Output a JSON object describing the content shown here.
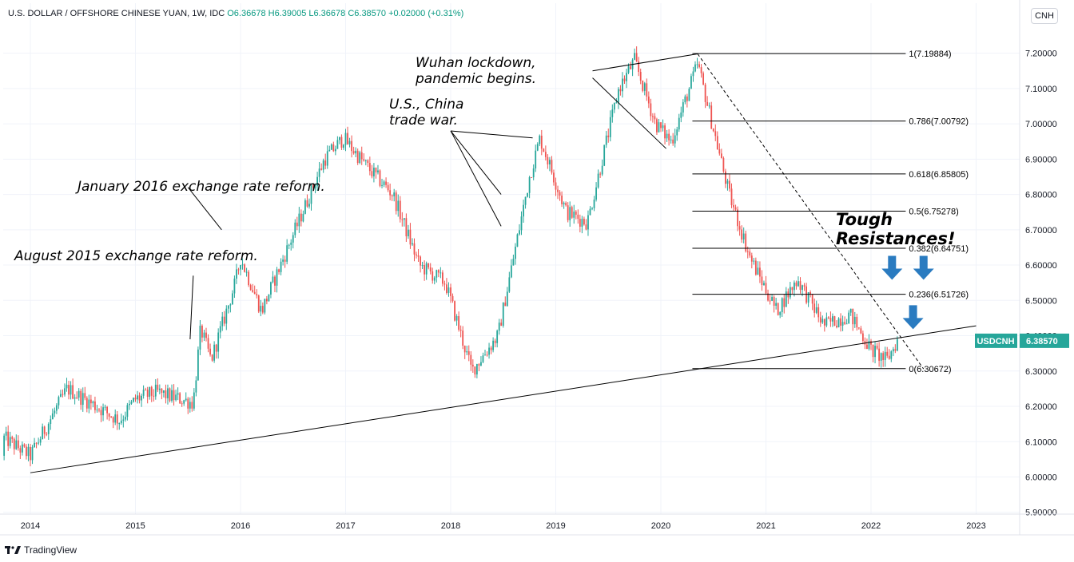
{
  "header": {
    "symbol": "U.S. DOLLAR / OFFSHORE CHINESE YUAN, 1W, IDC",
    "ohlc": "O6.36678  H6.39005  L6.36678  C6.38570  +0.02000 (+0.31%)"
  },
  "currency_button": "CNH",
  "brand": "TradingView",
  "annotations": {
    "aug2015": "August 2015 exchange rate reform.",
    "jan2016": "January 2016 exchange rate reform.",
    "tradewar_1": "U.S., China",
    "tradewar_2": "trade war.",
    "wuhan_1": "Wuhan lockdown,",
    "wuhan_2": "pandemic begins.",
    "tough_1": "Tough",
    "tough_2": "Resistances!"
  },
  "colors": {
    "up": "#26a69a",
    "down": "#ef5350",
    "arrow": "#2a7bc0",
    "price_tag": "#26a69a"
  },
  "chart_data": {
    "type": "candlestick",
    "symbol": "USDCNH",
    "timeframe": "1W",
    "last_price": "6.38570",
    "ylim": [
      5.9,
      7.27
    ],
    "y_ticks": [
      "5.90000",
      "6.00000",
      "6.10000",
      "6.20000",
      "6.30000",
      "6.40000",
      "6.50000",
      "6.60000",
      "6.70000",
      "6.80000",
      "6.90000",
      "7.00000",
      "7.10000",
      "7.20000"
    ],
    "x_ticks": [
      "2014",
      "2015",
      "2016",
      "2017",
      "2018",
      "2019",
      "2020",
      "2021",
      "2022",
      "2023"
    ],
    "price_path": [
      [
        2014.0,
        6.06
      ],
      [
        2014.35,
        6.25
      ],
      [
        2014.85,
        6.16
      ],
      [
        2015.0,
        6.22
      ],
      [
        2015.2,
        6.24
      ],
      [
        2015.55,
        6.21
      ],
      [
        2015.62,
        6.42
      ],
      [
        2015.72,
        6.33
      ],
      [
        2015.95,
        6.55
      ],
      [
        2016.0,
        6.62
      ],
      [
        2016.2,
        6.47
      ],
      [
        2016.45,
        6.65
      ],
      [
        2016.8,
        6.9
      ],
      [
        2016.98,
        6.96
      ],
      [
        2017.2,
        6.88
      ],
      [
        2017.45,
        6.8
      ],
      [
        2017.7,
        6.6
      ],
      [
        2017.95,
        6.55
      ],
      [
        2018.2,
        6.3
      ],
      [
        2018.45,
        6.4
      ],
      [
        2018.75,
        6.85
      ],
      [
        2018.85,
        6.96
      ],
      [
        2019.1,
        6.75
      ],
      [
        2019.3,
        6.72
      ],
      [
        2019.6,
        7.1
      ],
      [
        2019.75,
        7.18
      ],
      [
        2019.95,
        7.0
      ],
      [
        2020.1,
        6.95
      ],
      [
        2020.35,
        7.17
      ],
      [
        2020.65,
        6.8
      ],
      [
        2020.85,
        6.62
      ],
      [
        2021.1,
        6.47
      ],
      [
        2021.3,
        6.56
      ],
      [
        2021.55,
        6.43
      ],
      [
        2021.8,
        6.46
      ],
      [
        2022.0,
        6.36
      ],
      [
        2022.15,
        6.33
      ],
      [
        2022.25,
        6.386
      ]
    ],
    "trendline": {
      "from": [
        2014.0,
        6.012
      ],
      "to": [
        2023.0,
        6.428
      ]
    },
    "fibonacci": {
      "from_date": 2020.3,
      "to_date": 2022.33,
      "levels": [
        {
          "ratio": "1",
          "value": 7.19884,
          "label": "1(7.19884)"
        },
        {
          "ratio": "0.786",
          "value": 7.00792,
          "label": "0.786(7.00792)"
        },
        {
          "ratio": "0.618",
          "value": 6.85805,
          "label": "0.618(6.85805)"
        },
        {
          "ratio": "0.5",
          "value": 6.75278,
          "label": "0.5(6.75278)"
        },
        {
          "ratio": "0.382",
          "value": 6.64751,
          "label": "0.382(6.64751)"
        },
        {
          "ratio": "0.236",
          "value": 6.51726,
          "label": "0.236(6.51726)"
        },
        {
          "ratio": "0",
          "value": 6.30672,
          "label": "0(6.30672)"
        }
      ]
    },
    "dashed_line": {
      "from": [
        2020.35,
        7.198
      ],
      "to": [
        2022.5,
        6.306
      ]
    },
    "arrows": [
      [
        2022.2,
        6.59
      ],
      [
        2022.5,
        6.59
      ],
      [
        2022.4,
        6.45
      ]
    ]
  }
}
